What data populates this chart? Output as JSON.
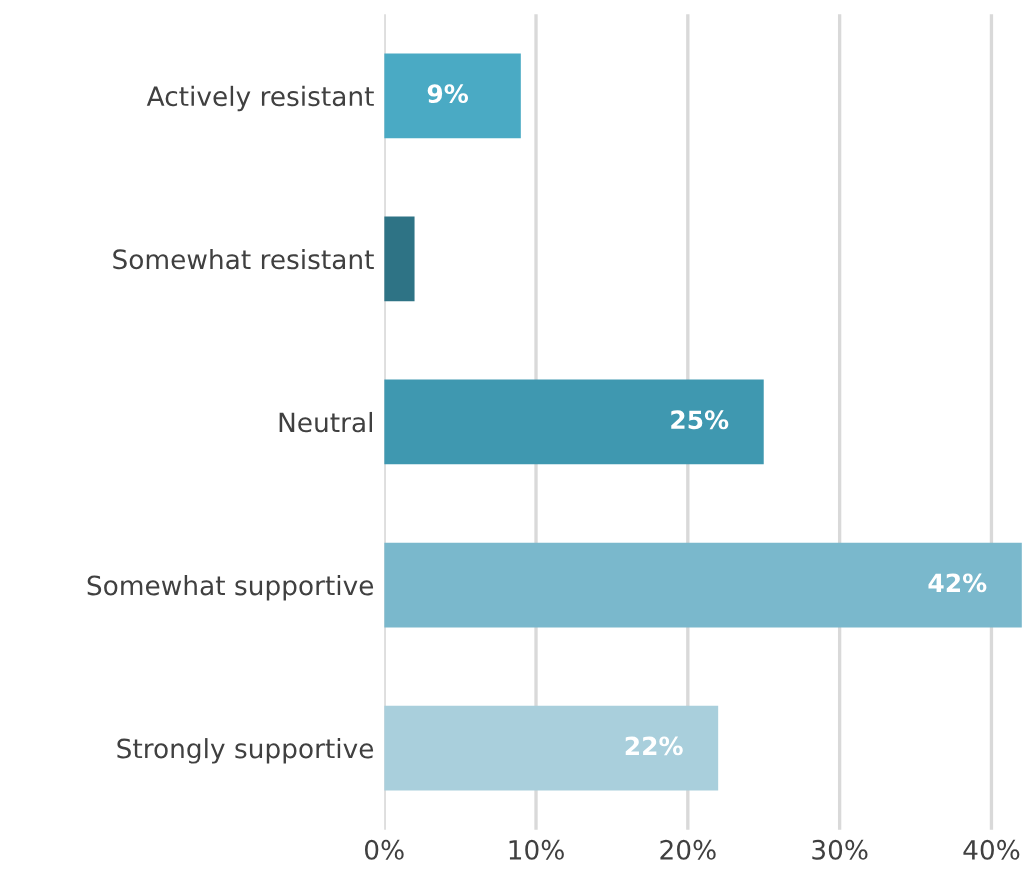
{
  "chart_data": {
    "type": "bar",
    "orientation": "horizontal",
    "categories": [
      "Actively resistant",
      "Somewhat resistant",
      "Neutral",
      "Somewhat supportive",
      "Strongly supportive"
    ],
    "values": [
      9,
      2,
      25,
      42,
      22
    ],
    "colors": [
      "#4aaac4",
      "#2e7385",
      "#3f98b0",
      "#7ab8cc",
      "#a9cfdc"
    ],
    "value_labels": [
      "9%",
      null,
      "25%",
      "42%",
      "22%"
    ],
    "xlim": [
      0,
      42.2
    ],
    "xticks": [
      {
        "value": 0,
        "label": "0%"
      },
      {
        "value": 10,
        "label": "10%"
      },
      {
        "value": 20,
        "label": "20%"
      },
      {
        "value": 30,
        "label": "30%"
      },
      {
        "value": 40,
        "label": "40%"
      }
    ],
    "grid": "x"
  }
}
